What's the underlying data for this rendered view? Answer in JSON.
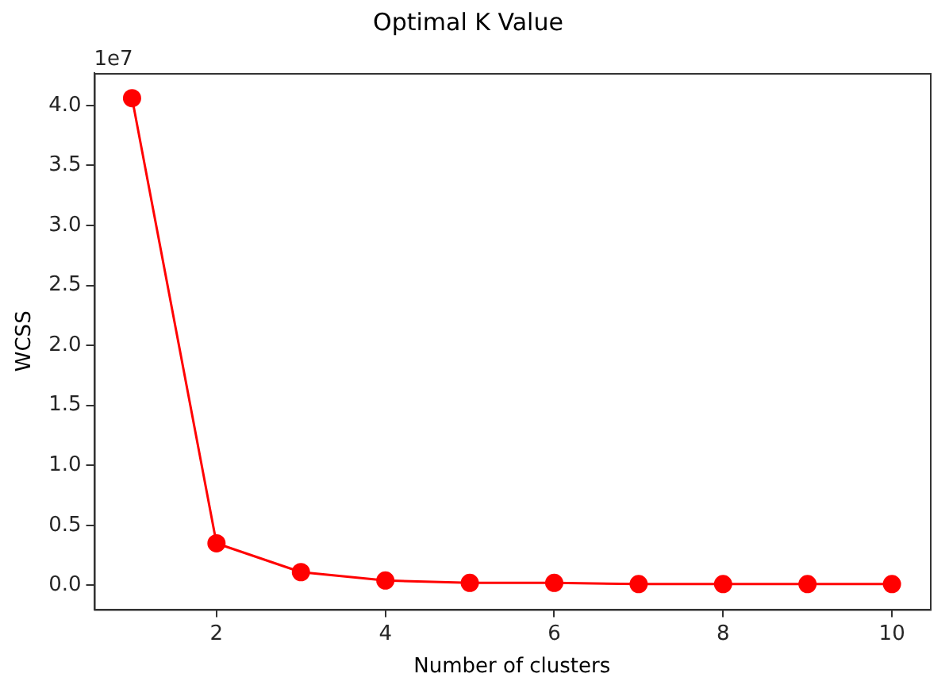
{
  "chart_data": {
    "type": "line",
    "title": "Optimal K Value",
    "xlabel": "Number of clusters",
    "ylabel": "WCSS",
    "annotations": [
      "1e7"
    ],
    "x": [
      1,
      2,
      3,
      4,
      5,
      6,
      7,
      8,
      9,
      10
    ],
    "series": [
      {
        "color": "#ff0000",
        "values": [
          4.06,
          0.35,
          0.11,
          0.04,
          0.02,
          0.02,
          0.01,
          0.01,
          0.01,
          0.01
        ]
      }
    ],
    "xlim": [
      0.55,
      10.45
    ],
    "xticks": [
      2,
      4,
      6,
      8,
      10
    ],
    "ylim": [
      -0.2,
      4.27
    ],
    "yticks": [
      {
        "value": 0,
        "label": "0.0"
      },
      {
        "value": 0.5,
        "label": "0.5"
      },
      {
        "value": 1,
        "label": "1.0"
      },
      {
        "value": 1.5,
        "label": "1.5"
      },
      {
        "value": 2,
        "label": "2.0"
      },
      {
        "value": 2.5,
        "label": "2.5"
      },
      {
        "value": 3,
        "label": "3.0"
      },
      {
        "value": 3.5,
        "label": "3.5"
      },
      {
        "value": 4,
        "label": "4.0"
      }
    ],
    "grid": false,
    "legend": false,
    "marker": "circle",
    "line_style": "solid"
  }
}
